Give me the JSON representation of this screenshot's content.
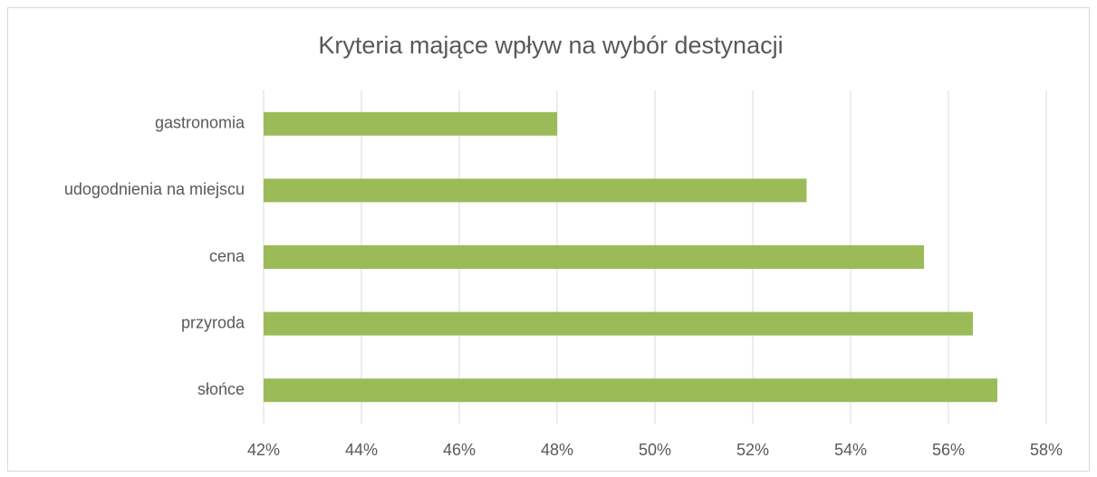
{
  "chart_data": {
    "type": "bar",
    "orientation": "horizontal",
    "title": "Kryteria mające wpływ na wybór destynacji",
    "categories": [
      "gastronomia",
      "udogodnienia na miejscu",
      "cena",
      "przyroda",
      "słońce"
    ],
    "values": [
      48.0,
      53.1,
      55.5,
      56.5,
      57.0
    ],
    "color": "#9bbb59",
    "xlim": [
      42,
      58
    ],
    "xticks": [
      {
        "value": 42,
        "label": "42%"
      },
      {
        "value": 44,
        "label": "44%"
      },
      {
        "value": 46,
        "label": "46%"
      },
      {
        "value": 48,
        "label": "48%"
      },
      {
        "value": 50,
        "label": "50%"
      },
      {
        "value": 52,
        "label": "52%"
      },
      {
        "value": 54,
        "label": "54%"
      },
      {
        "value": 56,
        "label": "56%"
      },
      {
        "value": 58,
        "label": "58%"
      }
    ],
    "grid": true
  }
}
